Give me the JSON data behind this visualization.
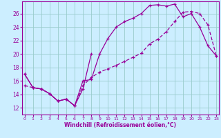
{
  "xlabel": "Windchill (Refroidissement éolien,°C)",
  "bg_color": "#cceeff",
  "line_color": "#990099",
  "grid_color": "#99cccc",
  "x_ticks": [
    0,
    1,
    2,
    3,
    4,
    5,
    6,
    7,
    8,
    9,
    10,
    11,
    12,
    13,
    14,
    15,
    16,
    17,
    18,
    19,
    20,
    21,
    22,
    23
  ],
  "y_ticks": [
    12,
    14,
    16,
    18,
    20,
    22,
    24,
    26
  ],
  "xlim": [
    -0.3,
    23.3
  ],
  "ylim": [
    11.0,
    27.8
  ],
  "line1_y": [
    17.0,
    15.0,
    14.8,
    14.1,
    13.0,
    13.3,
    12.3,
    14.8,
    20.0,
    null,
    null,
    null,
    null,
    null,
    null,
    null,
    null,
    null,
    null,
    null,
    null,
    null,
    null,
    null
  ],
  "line2_y": [
    17.0,
    15.0,
    14.8,
    14.1,
    13.0,
    13.3,
    12.3,
    16.0,
    16.2,
    20.0,
    22.3,
    24.0,
    24.8,
    25.3,
    26.0,
    27.2,
    27.3,
    27.1,
    27.4,
    25.5,
    26.0,
    24.0,
    21.2,
    19.7
  ],
  "line3_y": [
    15.3,
    15.0,
    14.8,
    14.1,
    13.0,
    13.3,
    12.3,
    15.3,
    16.5,
    17.3,
    17.8,
    18.3,
    18.9,
    19.5,
    20.1,
    21.5,
    22.2,
    23.3,
    24.8,
    26.2,
    26.3,
    26.0,
    24.3,
    19.7
  ],
  "lw": 0.9,
  "ms": 2.5
}
